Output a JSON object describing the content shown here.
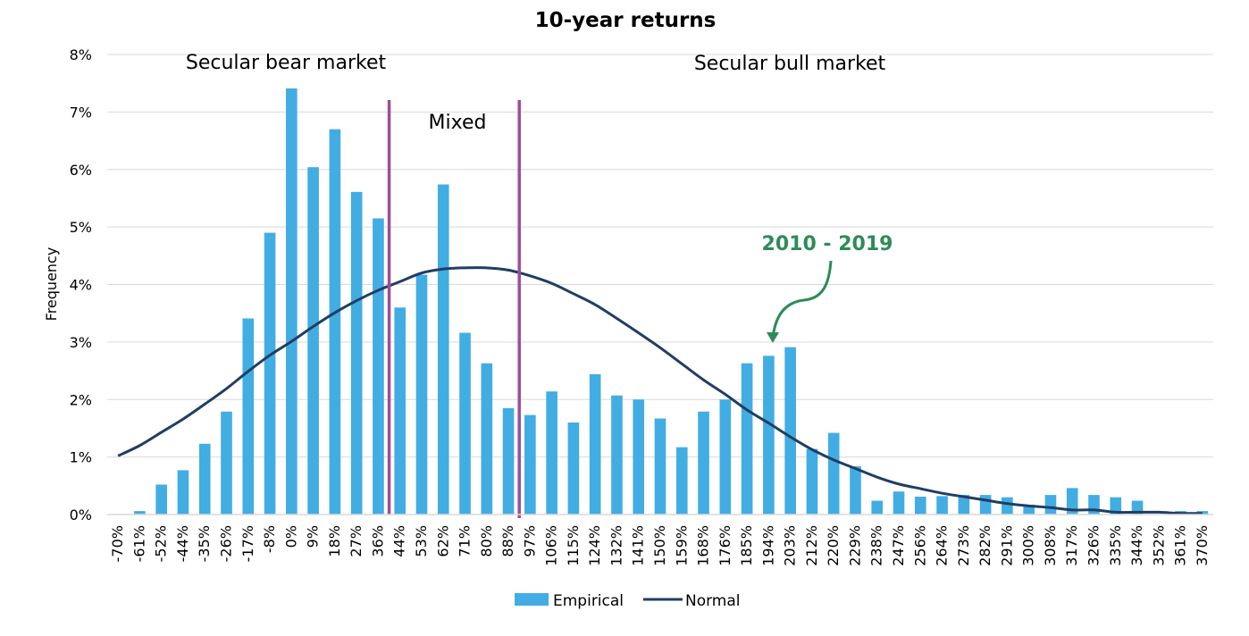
{
  "colors": {
    "bar": "#42ade2",
    "normal": "#203e63",
    "divider": "#9c4e9c",
    "callout": "#2e8b57",
    "grid": "#d9d9d9"
  },
  "chart_data": {
    "type": "bar",
    "title": "10-year returns",
    "xlabel": "",
    "ylabel": "Frequency",
    "ylim": [
      0,
      0.08
    ],
    "yticks": [
      "0%",
      "1%",
      "2%",
      "3%",
      "4%",
      "5%",
      "6%",
      "7%",
      "8%"
    ],
    "grid": true,
    "legend_position": "bottom",
    "categories": [
      "-70%",
      "-61%",
      "-52%",
      "-44%",
      "-35%",
      "-26%",
      "-17%",
      "-8%",
      "0%",
      "9%",
      "18%",
      "27%",
      "36%",
      "44%",
      "53%",
      "62%",
      "71%",
      "80%",
      "88%",
      "97%",
      "106%",
      "115%",
      "124%",
      "132%",
      "141%",
      "150%",
      "159%",
      "168%",
      "176%",
      "185%",
      "194%",
      "203%",
      "212%",
      "220%",
      "229%",
      "238%",
      "247%",
      "256%",
      "264%",
      "273%",
      "282%",
      "291%",
      "300%",
      "308%",
      "317%",
      "326%",
      "335%",
      "344%",
      "352%",
      "361%",
      "370%"
    ],
    "series": [
      {
        "name": "Empirical",
        "kind": "bar",
        "values": [
          0.0,
          0.0006,
          0.0052,
          0.0077,
          0.0123,
          0.0179,
          0.0341,
          0.049,
          0.0741,
          0.0604,
          0.067,
          0.0561,
          0.0515,
          0.036,
          0.0417,
          0.0574,
          0.0316,
          0.0263,
          0.0185,
          0.0173,
          0.0214,
          0.016,
          0.0244,
          0.0207,
          0.02,
          0.0167,
          0.0117,
          0.0179,
          0.02,
          0.0263,
          0.0276,
          0.0291,
          0.0114,
          0.0142,
          0.0084,
          0.0024,
          0.004,
          0.0031,
          0.0032,
          0.0034,
          0.0034,
          0.003,
          0.0017,
          0.0034,
          0.0046,
          0.0034,
          0.003,
          0.0024,
          0.0,
          0.0006,
          0.0006
        ]
      },
      {
        "name": "Normal",
        "kind": "line",
        "values": [
          0.0102,
          0.012,
          0.0143,
          0.0166,
          0.0192,
          0.0219,
          0.0249,
          0.0277,
          0.0301,
          0.0327,
          0.0351,
          0.0372,
          0.039,
          0.0405,
          0.042,
          0.0427,
          0.0429,
          0.0429,
          0.0425,
          0.0415,
          0.0402,
          0.0384,
          0.0365,
          0.0341,
          0.0316,
          0.029,
          0.0262,
          0.0234,
          0.0209,
          0.0182,
          0.0159,
          0.0135,
          0.0113,
          0.0095,
          0.008,
          0.0065,
          0.0053,
          0.0045,
          0.0037,
          0.0031,
          0.0025,
          0.0019,
          0.0015,
          0.0012,
          0.0008,
          0.0008,
          0.0004,
          0.0004,
          0.0004,
          0.0002,
          0.0002
        ]
      }
    ],
    "annotations": {
      "bear": "Secular bear market",
      "mixed": "Mixed",
      "bull": "Secular bull market",
      "callout": "2010 - 2019"
    },
    "divider_after_categories": [
      "36%",
      "88%"
    ]
  }
}
